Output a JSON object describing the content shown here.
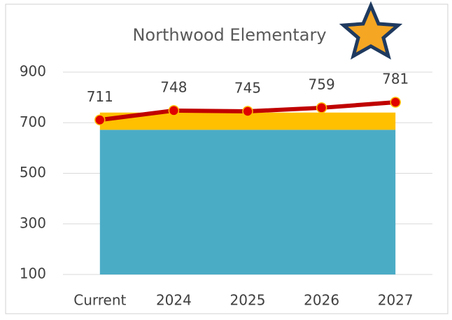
{
  "chart_data": {
    "type": "combo",
    "title": "Northwood  Elementary",
    "categories": [
      "Current",
      "2024",
      "2025",
      "2026",
      "2027"
    ],
    "series": [
      {
        "type": "area",
        "color": "#4bacc6",
        "values": [
          672,
          672,
          672,
          672,
          672
        ]
      },
      {
        "type": "area",
        "color": "#ffc000",
        "values": [
          68,
          68,
          68,
          68,
          68
        ]
      },
      {
        "type": "line",
        "color": "#c00000",
        "values": [
          711,
          748,
          745,
          759,
          781
        ]
      }
    ],
    "ylim": [
      100,
      900
    ],
    "yticks": [
      100,
      300,
      500,
      700,
      900
    ],
    "grid": true
  }
}
